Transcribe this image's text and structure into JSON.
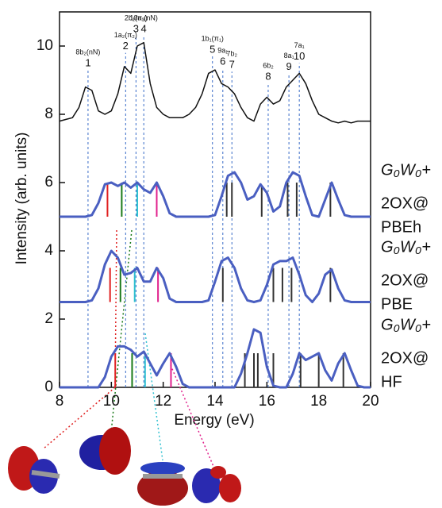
{
  "chart_data": {
    "type": "line",
    "xlabel": "Energy (eV)",
    "ylabel": "Intensity (arb. units)",
    "xlim": [
      8,
      20
    ],
    "ylim": [
      0,
      11
    ],
    "xticks": [
      8,
      10,
      12,
      14,
      16,
      18,
      20
    ],
    "yticks": [
      0,
      2,
      4,
      6,
      8,
      10
    ],
    "x": [
      8,
      8.25,
      8.5,
      8.75,
      9,
      9.25,
      9.5,
      9.75,
      10,
      10.25,
      10.5,
      10.75,
      11,
      11.25,
      11.5,
      11.75,
      12,
      12.25,
      12.5,
      12.75,
      13,
      13.25,
      13.5,
      13.75,
      14,
      14.25,
      14.5,
      14.75,
      15,
      15.25,
      15.5,
      15.75,
      16,
      16.25,
      16.5,
      16.75,
      17,
      17.25,
      17.5,
      17.75,
      18,
      18.25,
      18.5,
      18.75,
      19,
      19.25,
      19.5,
      19.75,
      20
    ],
    "series": [
      {
        "color": "#111111",
        "values": [
          7.8,
          7.85,
          7.9,
          8.2,
          8.8,
          8.7,
          8.1,
          8.0,
          8.1,
          8.6,
          9.4,
          9.2,
          10.0,
          10.1,
          8.9,
          8.2,
          8.0,
          7.9,
          7.9,
          7.9,
          8.0,
          8.2,
          8.6,
          9.2,
          9.3,
          8.9,
          8.8,
          8.6,
          8.2,
          7.9,
          7.8,
          8.3,
          8.5,
          8.3,
          8.4,
          8.8,
          9.0,
          9.2,
          8.9,
          8.4,
          8.0,
          7.9,
          7.8,
          7.75,
          7.8,
          7.75,
          7.8,
          7.8,
          7.8
        ]
      },
      {
        "color": "#4a5fc1",
        "values": [
          5,
          5,
          5,
          5,
          5,
          5.05,
          5.4,
          5.95,
          6.0,
          5.9,
          6.0,
          5.85,
          6.0,
          5.8,
          5.7,
          6.0,
          5.6,
          5.1,
          5,
          5,
          5,
          5,
          5,
          5,
          5.05,
          5.6,
          6.2,
          6.3,
          6.0,
          5.5,
          5.6,
          5.95,
          5.7,
          5.15,
          5.3,
          6.0,
          6.3,
          6.2,
          5.6,
          5.05,
          5.0,
          5.5,
          6.0,
          5.5,
          5.05,
          5,
          5,
          5,
          5
        ]
      },
      {
        "color": "#4a5fc1",
        "values": [
          2.5,
          2.5,
          2.5,
          2.5,
          2.5,
          2.55,
          2.9,
          3.6,
          4.0,
          3.8,
          3.3,
          3.35,
          3.5,
          3.1,
          3.1,
          3.5,
          3.2,
          2.6,
          2.5,
          2.5,
          2.5,
          2.5,
          2.5,
          2.55,
          3.1,
          3.7,
          3.8,
          3.5,
          2.9,
          2.55,
          2.5,
          2.55,
          3.0,
          3.6,
          3.7,
          3.7,
          3.8,
          3.3,
          2.7,
          2.5,
          2.75,
          3.3,
          3.45,
          2.9,
          2.55,
          2.5,
          2.5,
          2.5,
          2.5
        ]
      },
      {
        "color": "#4a5fc1",
        "values": [
          0,
          0,
          0,
          0,
          0,
          0,
          0,
          0.3,
          0.9,
          1.2,
          1.2,
          1.1,
          0.9,
          1.05,
          0.7,
          0.35,
          0.7,
          1.0,
          0.6,
          0.1,
          0,
          0,
          0,
          0,
          0,
          0,
          0,
          0,
          0.4,
          1.0,
          1.7,
          1.6,
          0.6,
          0.05,
          0,
          0,
          0.4,
          1.0,
          0.8,
          0.9,
          1.0,
          0.5,
          0.2,
          0.7,
          1.0,
          0.5,
          0.05,
          0,
          0
        ]
      }
    ],
    "sticks": [
      {
        "base": 5,
        "x": [
          9.85,
          10.4,
          11.0,
          11.75,
          14.45,
          14.65,
          15.8,
          16.8,
          17.15,
          18.45
        ],
        "values": [
          6.0,
          6.0,
          6.0,
          6.0,
          6.0,
          6.0,
          5.9,
          6.0,
          6.0,
          6.0
        ],
        "colors": [
          "#e02020",
          "#1a7a1a",
          "#30c0d0",
          "#e0208c",
          "#333333",
          "#333333",
          "#333333",
          "#333333",
          "#333333",
          "#333333"
        ]
      },
      {
        "base": 2.5,
        "x": [
          9.95,
          10.35,
          10.9,
          11.8,
          14.3,
          16.25,
          16.6,
          16.95,
          18.45
        ],
        "values": [
          3.5,
          3.5,
          3.5,
          3.5,
          3.5,
          3.5,
          3.5,
          3.5,
          3.5
        ],
        "colors": [
          "#e02020",
          "#1a7a1a",
          "#30c0d0",
          "#e0208c",
          "#333333",
          "#333333",
          "#333333",
          "#333333",
          "#333333"
        ]
      },
      {
        "base": 0,
        "x": [
          10.15,
          10.8,
          11.3,
          12.3,
          15.15,
          15.5,
          15.65,
          16.25,
          17.3,
          18.0,
          18.95
        ],
        "values": [
          1.0,
          1.0,
          1.0,
          1.0,
          1.0,
          1.0,
          1.0,
          1.0,
          1.0,
          1.0,
          1.0
        ],
        "colors": [
          "#e02020",
          "#1a7a1a",
          "#30c0d0",
          "#e0208c",
          "#333333",
          "#333333",
          "#333333",
          "#333333",
          "#333333",
          "#333333",
          "#333333"
        ]
      }
    ],
    "peaks": [
      {
        "x": 9.1,
        "y": 9.3,
        "label": "1",
        "orbital": "8b₂(nN)"
      },
      {
        "x": 10.55,
        "y": 9.8,
        "label": "2",
        "orbital": "1a₂(π₂)"
      },
      {
        "x": 10.95,
        "y": 10.3,
        "label": "3",
        "orbital": "2b₁(π₃)"
      },
      {
        "x": 11.25,
        "y": 10.3,
        "label": "4",
        "orbital": "10a₁(nN)"
      },
      {
        "x": 13.9,
        "y": 9.7,
        "label": "5",
        "orbital": "1b₁(π₁)"
      },
      {
        "x": 14.3,
        "y": 9.35,
        "label": "6",
        "orbital": "9a₁"
      },
      {
        "x": 14.65,
        "y": 9.25,
        "label": "7",
        "orbital": "7b₂"
      },
      {
        "x": 16.05,
        "y": 8.9,
        "label": "8",
        "orbital": "6b₂"
      },
      {
        "x": 16.85,
        "y": 9.2,
        "label": "9",
        "orbital": "8a₁"
      },
      {
        "x": 17.25,
        "y": 9.5,
        "label": "10",
        "orbital": "7a₁"
      }
    ],
    "methods": [
      [
        "G₀W₀+",
        "2OX@",
        "PBEh"
      ],
      [
        "G₀W₀+",
        "2OX@",
        "PBE"
      ],
      [
        "G₀W₀+",
        "2OX@",
        "HF"
      ]
    ]
  }
}
